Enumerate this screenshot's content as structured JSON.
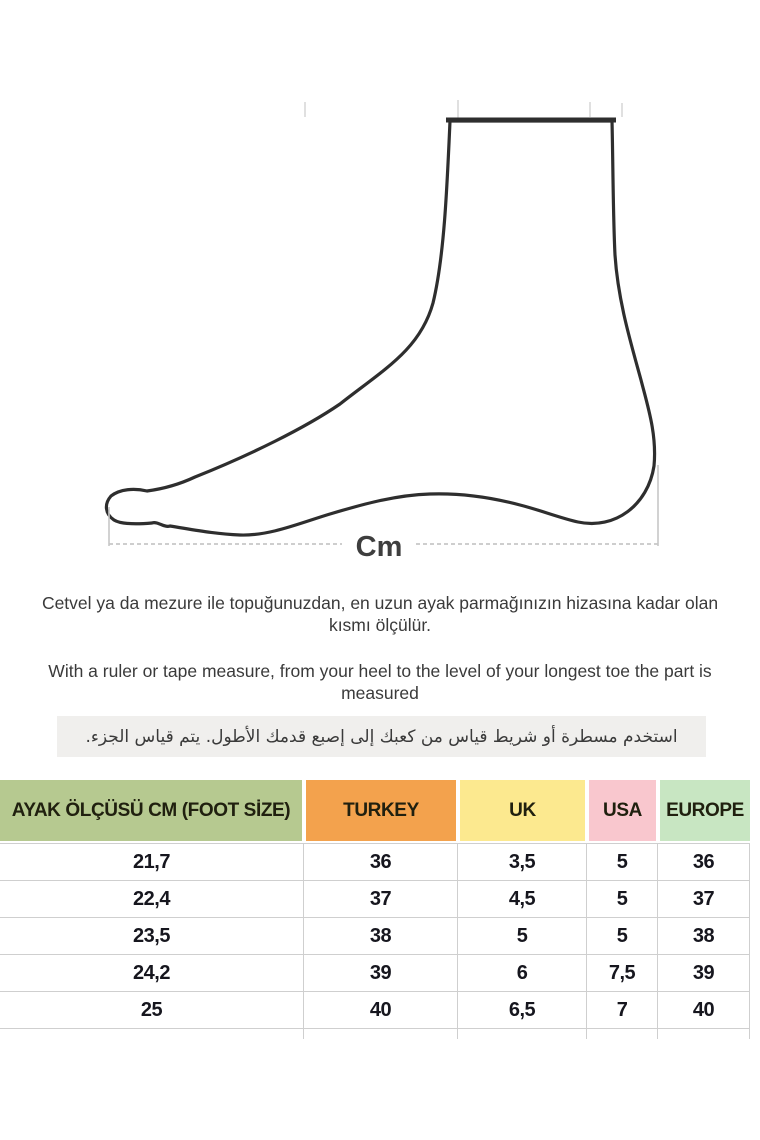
{
  "diagram": {
    "unit_label": "Cm"
  },
  "instructions": {
    "turkish": "Cetvel ya da mezure ile topuğunuzdan, en uzun ayak parmağınızın hizasına kadar olan kısmı ölçülür.",
    "english": "With a ruler or tape measure, from your heel to the level of your longest toe the part is measured",
    "arabic": "استخدم مسطرة أو شريط قياس من كعبك إلى إصبع قدمك الأطول.  يتم قياس الجزء."
  },
  "size_table": {
    "columns": [
      {
        "label": "AYAK ÖLÇÜSÜ CM (FOOT SİZE)",
        "color": "#b6c990"
      },
      {
        "label": "TURKEY",
        "color": "#f3a24d"
      },
      {
        "label": "UK",
        "color": "#fce98f"
      },
      {
        "label": "USA",
        "color": "#f9c7ce"
      },
      {
        "label": "EUROPE",
        "color": "#c8e6c2"
      }
    ],
    "rows": [
      [
        "21,7",
        "36",
        "3,5",
        "5",
        "36"
      ],
      [
        "22,4",
        "37",
        "4,5",
        "5",
        "37"
      ],
      [
        "23,5",
        "38",
        "5",
        "5",
        "38"
      ],
      [
        "24,2",
        "39",
        "6",
        "7,5",
        "39"
      ],
      [
        "25",
        "40",
        "6,5",
        "7",
        "40"
      ]
    ]
  }
}
